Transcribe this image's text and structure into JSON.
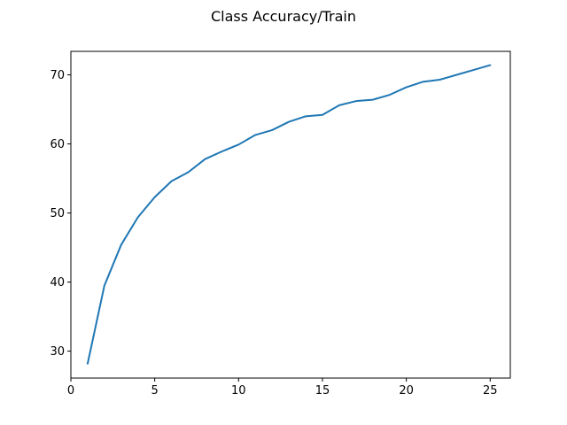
{
  "chart_data": {
    "type": "line",
    "title": "Class Accuracy/Train",
    "xlabel": "",
    "ylabel": "",
    "xlim": [
      0,
      26.2
    ],
    "ylim": [
      26.1,
      73.4
    ],
    "xticks": [
      0,
      5,
      10,
      15,
      20,
      25
    ],
    "yticks": [
      30,
      40,
      50,
      60,
      70
    ],
    "grid": false,
    "series": [
      {
        "color": "#1f77b4",
        "x": [
          1,
          2,
          3,
          4,
          5,
          6,
          7,
          8,
          9,
          10,
          11,
          12,
          13,
          14,
          15,
          16,
          17,
          18,
          19,
          20,
          21,
          22,
          23,
          24,
          25
        ],
        "y": [
          28.2,
          39.5,
          45.4,
          49.4,
          52.3,
          54.6,
          55.9,
          57.8,
          58.9,
          59.9,
          61.3,
          62.0,
          63.2,
          64.0,
          64.2,
          65.6,
          66.2,
          66.4,
          67.1,
          68.2,
          69.0,
          69.3,
          70.0,
          70.7,
          71.4
        ]
      }
    ]
  }
}
